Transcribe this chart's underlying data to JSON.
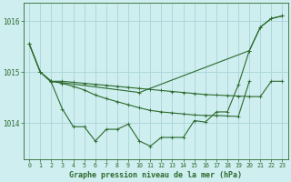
{
  "background_color": "#ceeef0",
  "grid_color": "#aad4d8",
  "line_color": "#2d6a2d",
  "xlabel": "Graphe pression niveau de la mer (hPa)",
  "ylim": [
    1013.3,
    1016.35
  ],
  "xlim": [
    -0.5,
    23.5
  ],
  "yticks": [
    1014,
    1015,
    1016
  ],
  "xticks": [
    0,
    1,
    2,
    3,
    4,
    5,
    6,
    7,
    8,
    9,
    10,
    11,
    12,
    13,
    14,
    15,
    16,
    17,
    18,
    19,
    20,
    21,
    22,
    23
  ],
  "line1_x": [
    0,
    1,
    2,
    3,
    4,
    5,
    6,
    7,
    8,
    9,
    10,
    11,
    12,
    13,
    14,
    15,
    16,
    17,
    18,
    19,
    20,
    21,
    22,
    23
  ],
  "line1_y": [
    1015.55,
    1015.0,
    1014.8,
    1014.28,
    1013.93,
    1013.93,
    1013.65,
    1013.88,
    1013.88,
    1013.98,
    1013.65,
    1013.55,
    1013.72,
    1013.72,
    1013.72,
    1014.05,
    1014.02,
    1014.22,
    1014.22,
    1014.75,
    1015.42,
    1015.88,
    1016.05,
    1016.1
  ],
  "line2_x": [
    0,
    1,
    2,
    3,
    4,
    5,
    6,
    7,
    8,
    9,
    10,
    11,
    12,
    13,
    14,
    15,
    16,
    17,
    18,
    19,
    20,
    21,
    22,
    23
  ],
  "line2_y": [
    1015.55,
    1015.0,
    1014.82,
    1014.82,
    1014.8,
    1014.78,
    1014.76,
    1014.74,
    1014.72,
    1014.7,
    1014.68,
    1014.66,
    1014.64,
    1014.62,
    1014.6,
    1014.58,
    1014.56,
    1014.55,
    1014.54,
    1014.53,
    1014.52,
    1014.52,
    1014.82,
    1014.82
  ],
  "line3_x": [
    2,
    10,
    20,
    21,
    22,
    23
  ],
  "line3_y": [
    1014.82,
    1014.6,
    1015.42,
    1015.88,
    1016.05,
    1016.1
  ],
  "line4_x": [
    0,
    1,
    2,
    3,
    4,
    5,
    6,
    7,
    8,
    9,
    10,
    11,
    12,
    13,
    14,
    15,
    16,
    17,
    18,
    19,
    20
  ],
  "line4_y": [
    1015.55,
    1015.0,
    1014.82,
    1014.78,
    1014.72,
    1014.65,
    1014.55,
    1014.48,
    1014.42,
    1014.36,
    1014.3,
    1014.25,
    1014.22,
    1014.2,
    1014.18,
    1014.16,
    1014.15,
    1014.15,
    1014.14,
    1014.13,
    1014.82
  ]
}
